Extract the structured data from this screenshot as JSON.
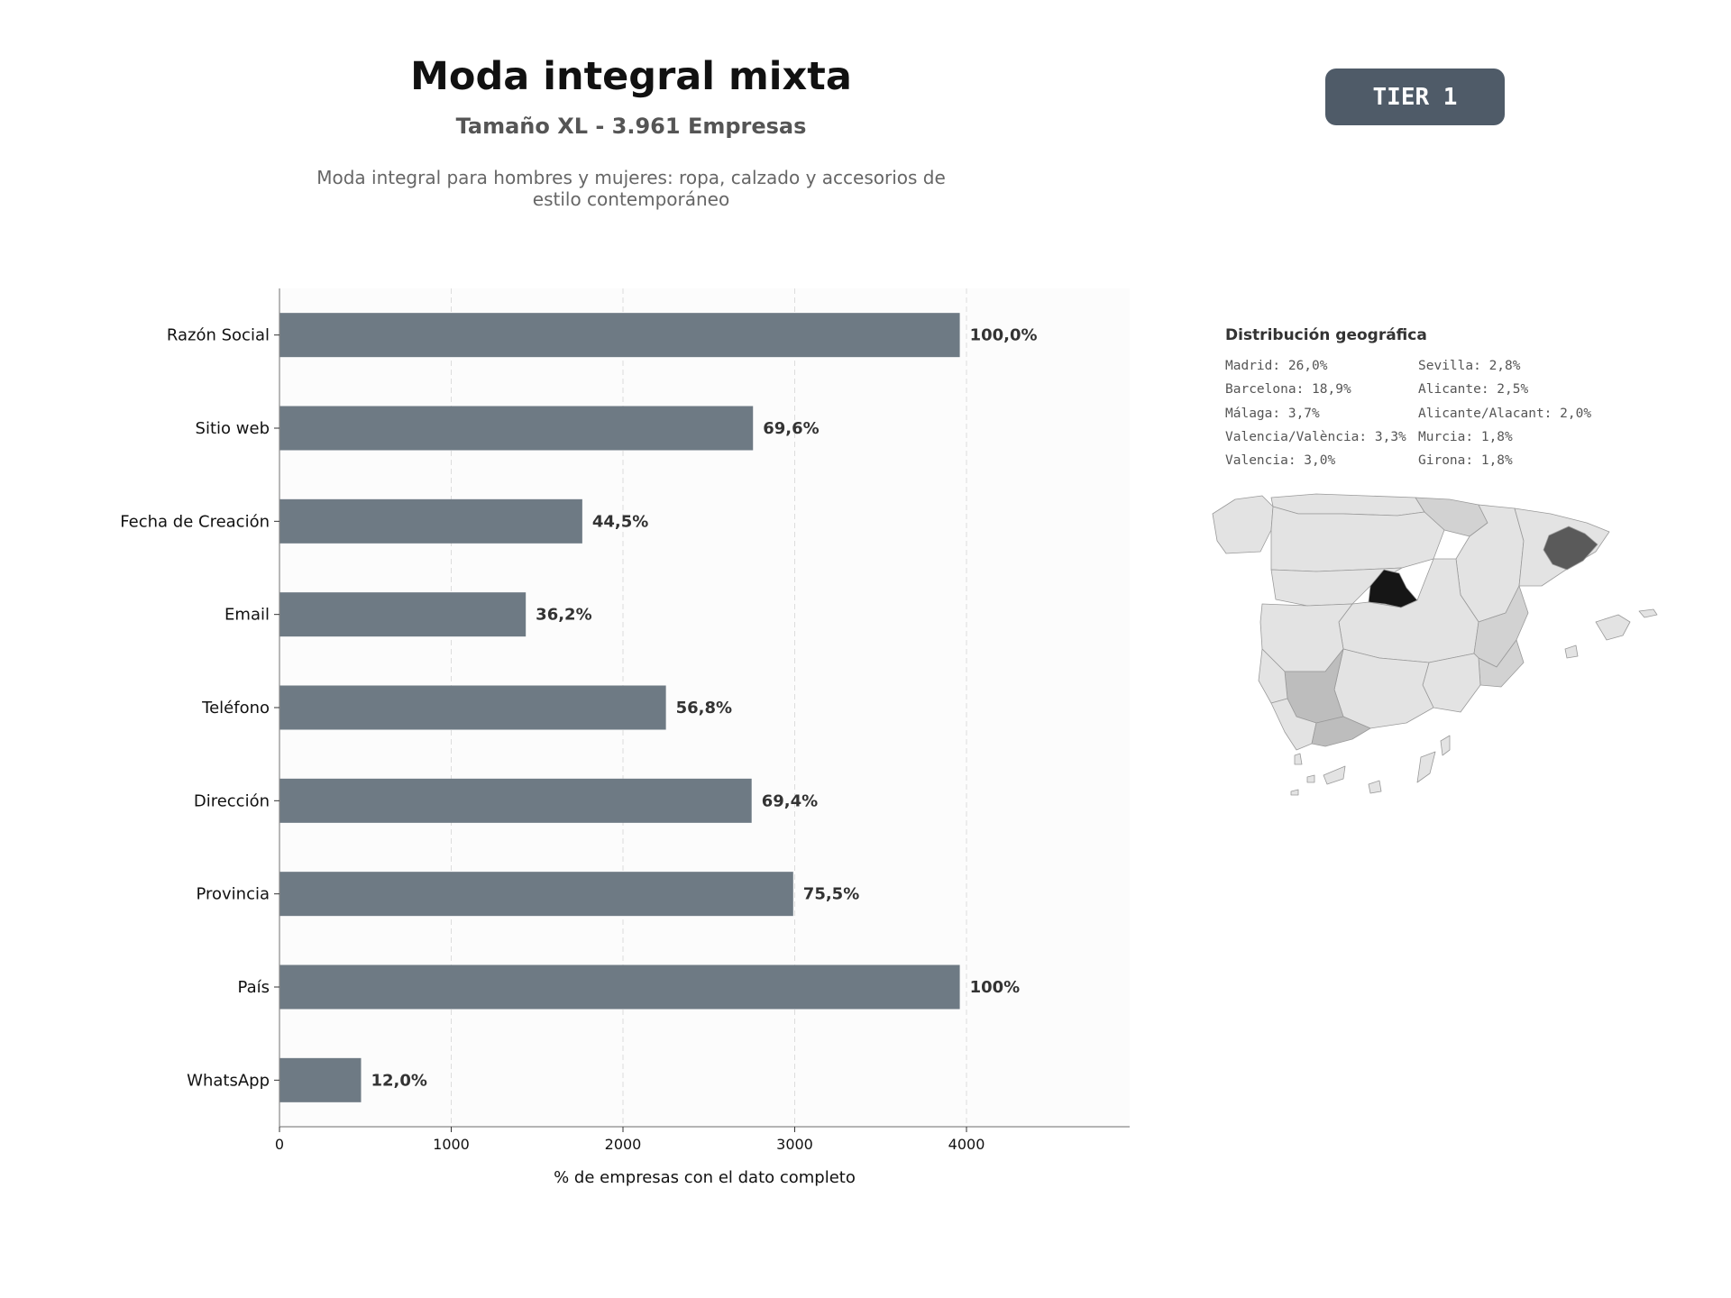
{
  "header": {
    "title": "Moda integral mixta",
    "subtitle": "Tamaño XL - 3.961 Empresas",
    "description": "Moda integral para hombres y mujeres: ropa, calzado y accesorios de estilo contemporáneo",
    "tier": "TIER 1"
  },
  "chart_data": {
    "type": "bar",
    "orientation": "horizontal",
    "title": "",
    "xlabel": "% de empresas con el dato completo",
    "ylabel": "",
    "xlim": [
      0,
      4950
    ],
    "xticks": [
      0,
      1000,
      2000,
      3000,
      4000
    ],
    "grid": "vertical dashed",
    "categories": [
      "Razón Social",
      "Sitio web",
      "Fecha de Creación",
      "Email",
      "Teléfono",
      "Dirección",
      "Provincia",
      "País",
      "WhatsApp"
    ],
    "values": [
      3961,
      2757,
      1763,
      1434,
      2250,
      2749,
      2991,
      3961,
      475
    ],
    "labels": [
      "100,0%",
      "69,6%",
      "44,5%",
      "36,2%",
      "56,8%",
      "69,4%",
      "75,5%",
      "100%",
      "12,0%"
    ],
    "color": "#6e7a84"
  },
  "geo": {
    "title": "Distribución geográfica",
    "items": [
      "Madrid: 26,0%",
      "Sevilla: 2,8%",
      "Barcelona: 18,9%",
      "Alicante: 2,5%",
      "Málaga: 3,7%",
      "Alicante/Alacant: 2,0%",
      "Valencia/València: 3,3%",
      "Murcia: 1,8%",
      "Valencia: 3,0%",
      "Girona: 1,8%"
    ],
    "map_colors": {
      "base": "#e3e3e3",
      "light": "#d2d2d2",
      "mid": "#bdbdbd",
      "dark": "#5a5a5a",
      "darkest": "#161616"
    }
  }
}
